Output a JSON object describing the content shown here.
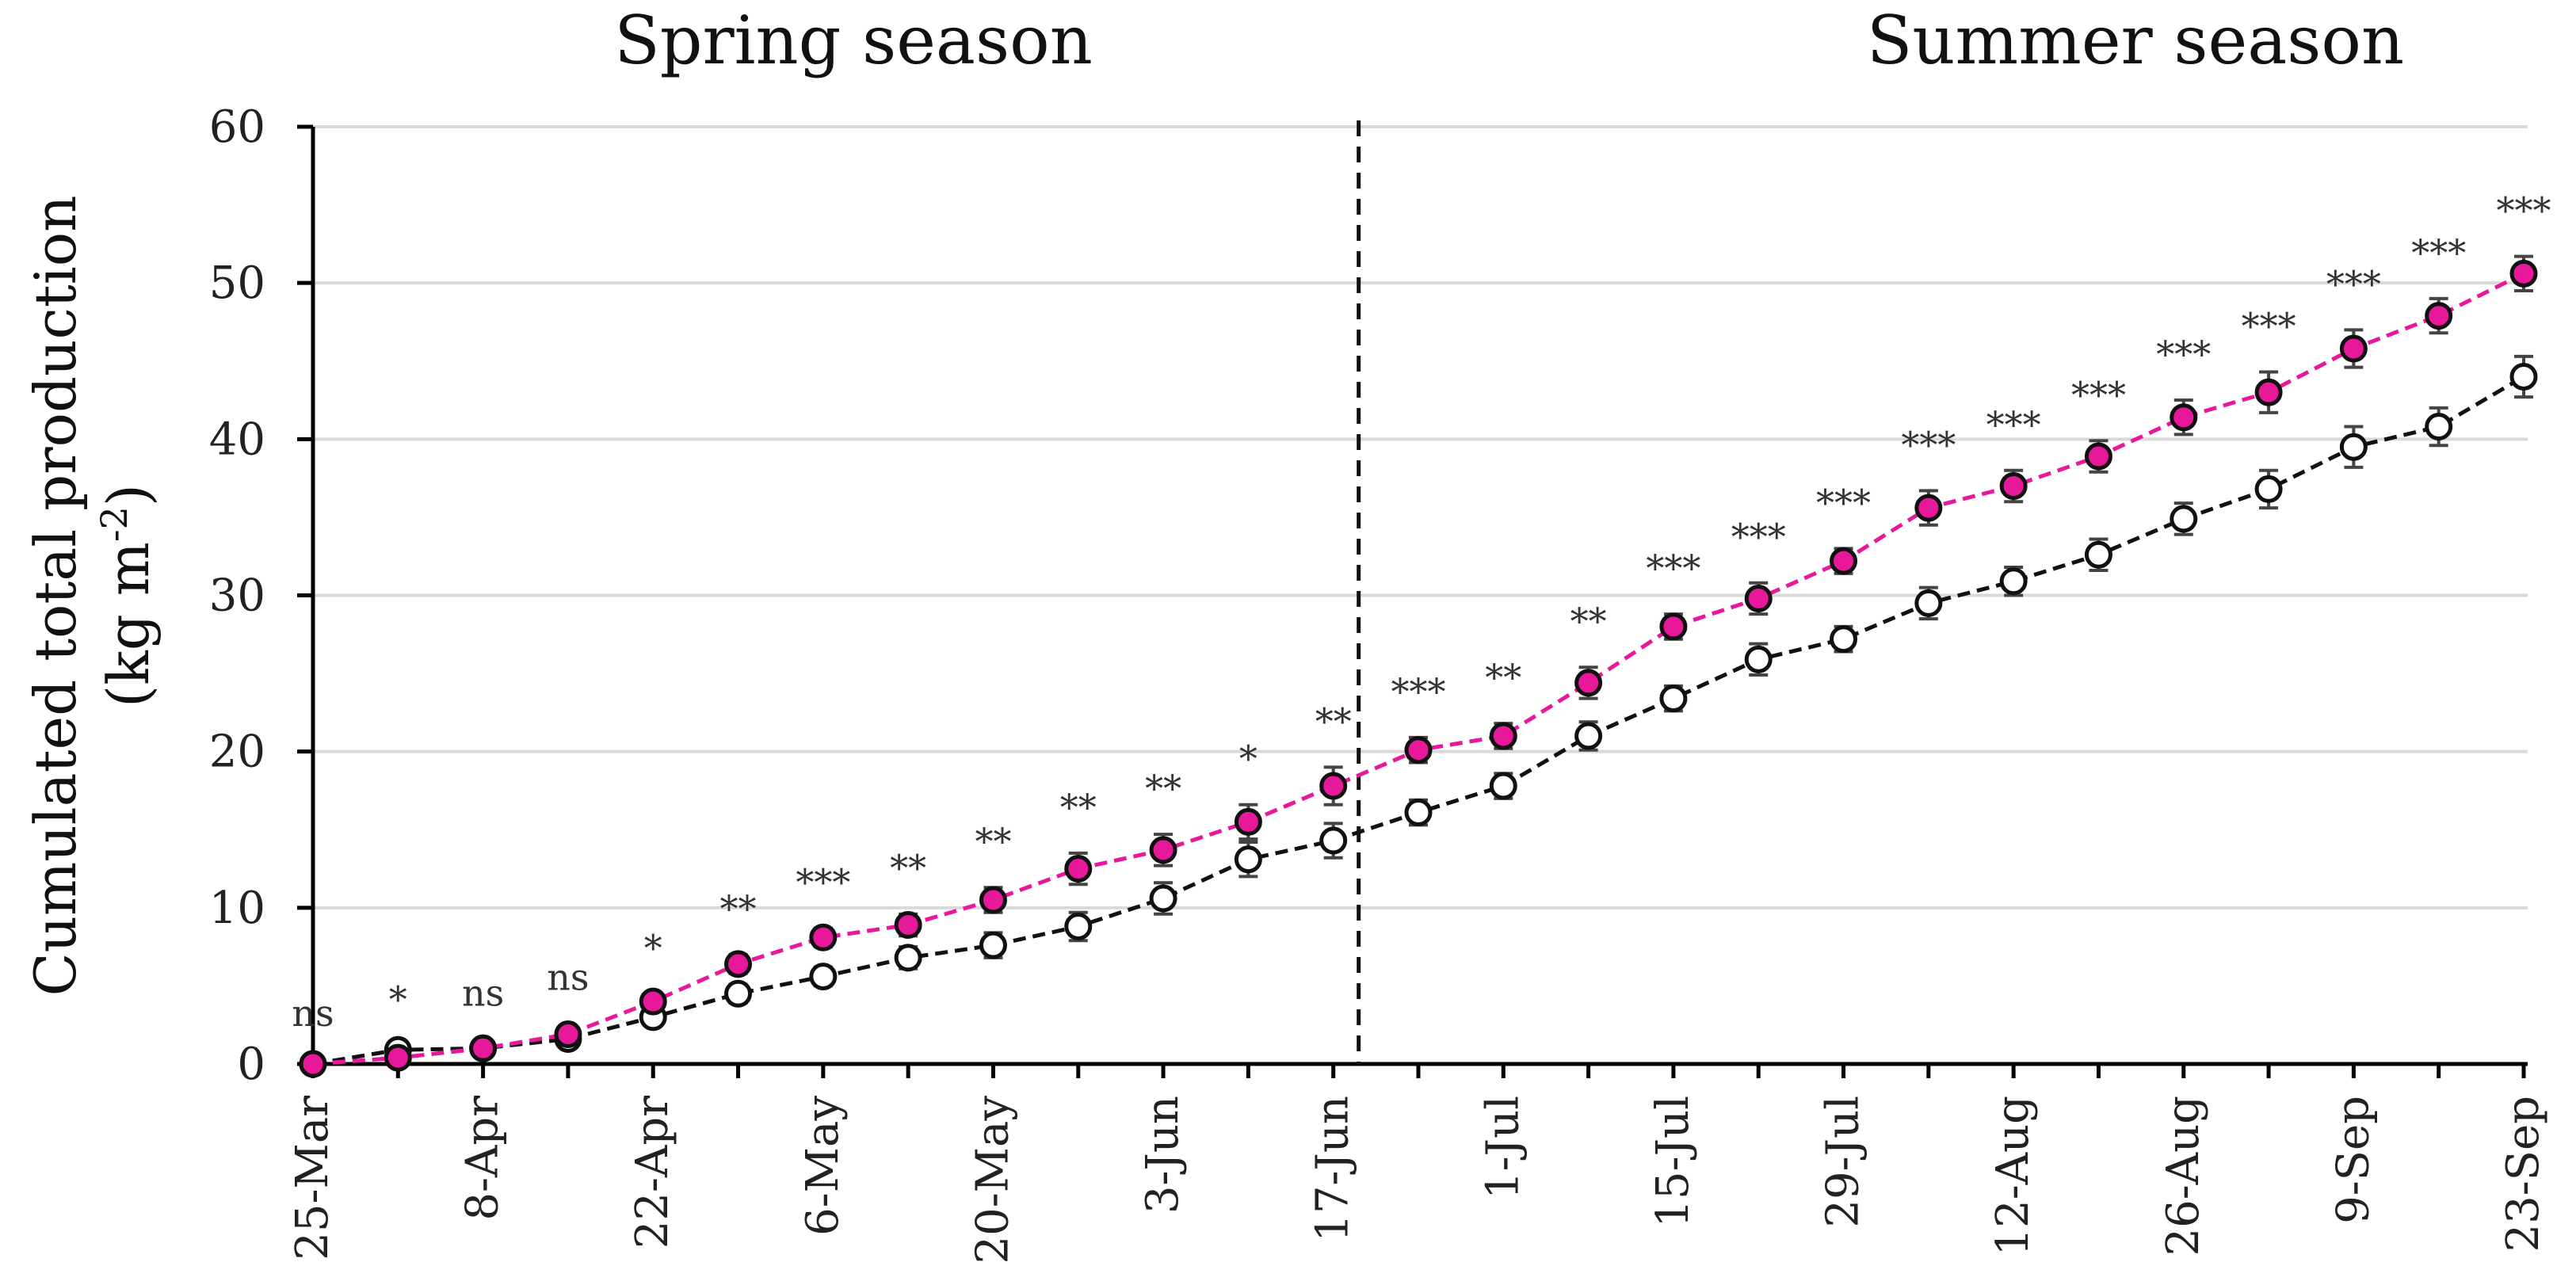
{
  "chart_data": {
    "type": "line",
    "season_labels": [
      "Spring season",
      "Summer season"
    ],
    "ylabel_line1": "Cumulated total production",
    "ylabel_line2": "(kg m",
    "ylabel_sup": "-2",
    "ylabel_end": ")",
    "ylim": [
      0,
      60
    ],
    "yticks": [
      "0",
      "10",
      "20",
      "30",
      "40",
      "50",
      "60"
    ],
    "grid": true,
    "legend": "none",
    "season_divider_index": 12,
    "x_tick_labels": [
      "25-Mar",
      "8-Apr",
      "22-Apr",
      "6-May",
      "20-May",
      "3-Jun",
      "17-Jun",
      "1-Jul",
      "15-Jul",
      "29-Jul",
      "12-Aug",
      "26-Aug",
      "9-Sep",
      "23-Sep"
    ],
    "x": [
      "25-Mar",
      "1-Apr",
      "8-Apr",
      "15-Apr",
      "22-Apr",
      "29-Apr",
      "6-May",
      "13-May",
      "20-May",
      "27-May",
      "3-Jun",
      "10-Jun",
      "17-Jun",
      "24-Jun",
      "1-Jul",
      "8-Jul",
      "15-Jul",
      "22-Jul",
      "29-Jul",
      "5-Aug",
      "12-Aug",
      "19-Aug",
      "26-Aug",
      "2-Sep",
      "9-Sep",
      "16-Sep",
      "23-Sep"
    ],
    "series": [
      {
        "color": "#e8189a",
        "marker": "filled",
        "values": [
          0,
          0.4,
          1.0,
          1.9,
          4.0,
          6.4,
          8.1,
          8.9,
          10.5,
          12.5,
          13.7,
          15.5,
          17.8,
          20.1,
          21.0,
          24.4,
          28.0,
          29.8,
          32.2,
          35.6,
          37.0,
          38.9,
          41.4,
          43.0,
          45.8,
          47.9,
          50.6
        ],
        "errors": [
          0,
          0.3,
          0.3,
          0.4,
          0.5,
          0.6,
          0.6,
          0.7,
          0.8,
          1.0,
          1.0,
          1.1,
          1.2,
          0.8,
          0.8,
          1.0,
          0.8,
          1.0,
          0.8,
          1.1,
          1.0,
          1.0,
          1.1,
          1.3,
          1.2,
          1.1,
          1.1
        ]
      },
      {
        "color": "#111111",
        "marker": "open",
        "values": [
          0,
          0.9,
          1.0,
          1.6,
          3.0,
          4.5,
          5.6,
          6.8,
          7.6,
          8.8,
          10.6,
          13.1,
          14.3,
          16.1,
          17.8,
          21.0,
          23.4,
          25.9,
          27.2,
          29.5,
          30.9,
          32.6,
          34.9,
          36.8,
          39.5,
          40.8,
          44.0
        ],
        "errors": [
          0,
          0.3,
          0.3,
          0.4,
          0.5,
          0.6,
          0.6,
          0.7,
          0.8,
          0.9,
          1.0,
          1.1,
          1.1,
          0.8,
          0.8,
          0.9,
          0.8,
          1.0,
          0.8,
          1.0,
          0.9,
          1.0,
          1.0,
          1.2,
          1.3,
          1.2,
          1.3
        ]
      }
    ],
    "significance": [
      "ns",
      "*",
      "ns",
      "ns",
      "*",
      "**",
      "***",
      "**",
      "**",
      "**",
      "**",
      "*",
      "**",
      "***",
      "**",
      "**",
      "***",
      "***",
      "***",
      "***",
      "***",
      "***",
      "***",
      "***",
      "***",
      "***",
      "***"
    ]
  }
}
